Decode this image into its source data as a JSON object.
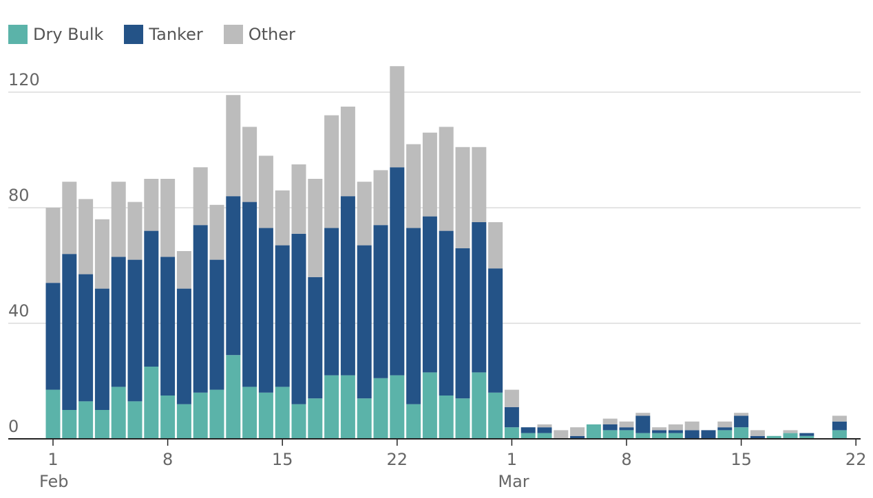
{
  "chart_data": {
    "type": "bar",
    "stacked": true,
    "legend": [
      {
        "name": "Dry Bulk",
        "color": "#5bb3a9"
      },
      {
        "name": "Tanker",
        "color": "#245387"
      },
      {
        "name": "Other",
        "color": "#bcbcbc"
      }
    ],
    "ylim": [
      0,
      125
    ],
    "yticks": [
      "0",
      "40",
      "80",
      "120"
    ],
    "ytick_values": [
      0,
      40,
      80,
      120
    ],
    "xticks": [
      {
        "day": 1,
        "label": "1"
      },
      {
        "day": 8,
        "label": "8"
      },
      {
        "day": 15,
        "label": "15"
      },
      {
        "day": 22,
        "label": "22"
      },
      {
        "day": 29,
        "label": "1"
      },
      {
        "day": 36,
        "label": "8"
      },
      {
        "day": 43,
        "label": "15"
      },
      {
        "day": 50,
        "label": "22"
      }
    ],
    "month_labels": [
      {
        "day": 1,
        "label": "Feb"
      },
      {
        "day": 29,
        "label": "Mar"
      }
    ],
    "x_range": [
      1,
      50
    ],
    "series": [
      {
        "name": "Dry Bulk",
        "values": [
          17,
          10,
          13,
          10,
          18,
          13,
          25,
          15,
          12,
          16,
          17,
          29,
          18,
          16,
          18,
          12,
          14,
          22,
          22,
          14,
          21,
          22,
          12,
          23,
          15,
          14,
          23,
          16,
          4,
          2,
          2,
          0,
          0,
          5,
          3,
          3,
          2,
          2,
          2,
          0,
          0,
          3,
          4,
          0,
          1,
          2,
          1,
          0,
          3,
          0
        ]
      },
      {
        "name": "Tanker",
        "values": [
          37,
          54,
          44,
          42,
          45,
          49,
          47,
          48,
          40,
          58,
          45,
          55,
          64,
          57,
          49,
          59,
          42,
          51,
          62,
          53,
          53,
          72,
          61,
          54,
          57,
          52,
          52,
          43,
          7,
          2,
          2,
          0,
          1,
          0,
          2,
          1,
          6,
          1,
          1,
          3,
          3,
          1,
          4,
          1,
          0,
          0,
          1,
          0,
          3,
          0
        ]
      },
      {
        "name": "Other",
        "values": [
          26,
          25,
          26,
          24,
          26,
          20,
          18,
          27,
          13,
          20,
          19,
          35,
          26,
          25,
          19,
          24,
          34,
          39,
          31,
          22,
          19,
          35,
          29,
          29,
          36,
          35,
          26,
          16,
          6,
          0,
          1,
          3,
          3,
          0,
          2,
          2,
          1,
          1,
          2,
          3,
          0,
          2,
          1,
          2,
          0,
          1,
          0,
          0,
          2,
          0
        ]
      }
    ]
  }
}
